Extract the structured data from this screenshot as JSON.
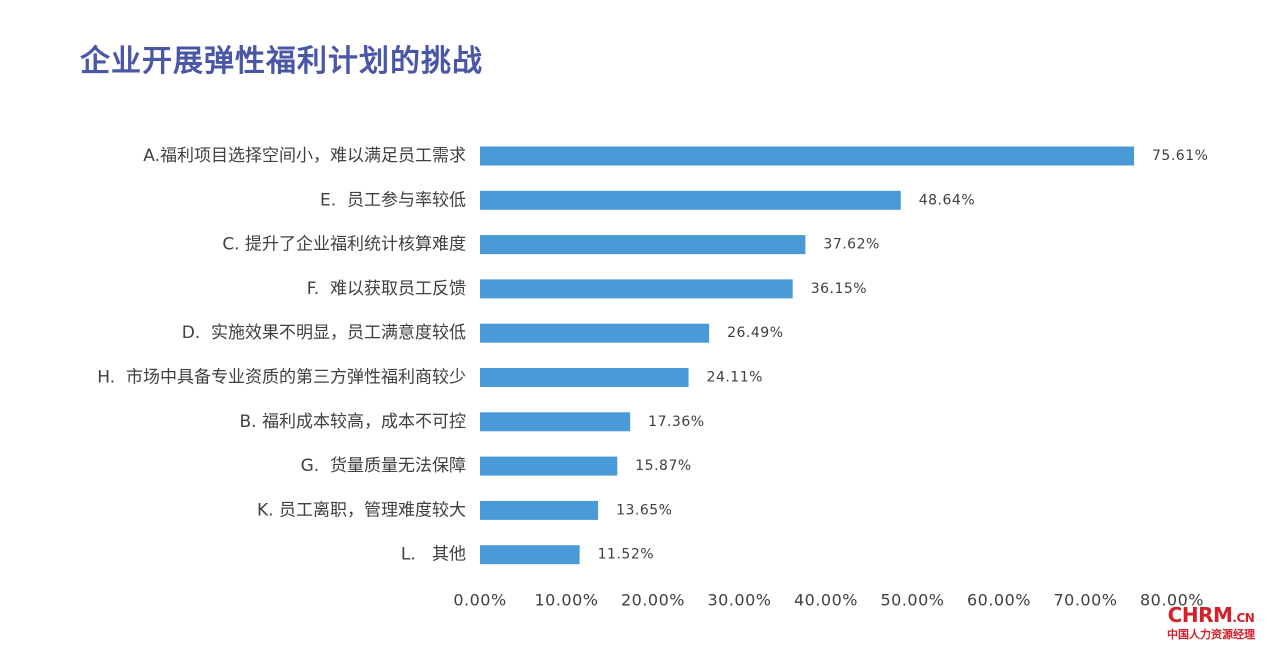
{
  "title": "企业开展弹性福利计划的挑战",
  "chart_data": {
    "type": "bar",
    "orientation": "horizontal",
    "categories": [
      "A.福利项目选择空间小，难以满足员工需求",
      "E.  员工参与率较低",
      "C. 提升了企业福利统计核算难度",
      "F.  难以获取员工反馈",
      "D.  实施效果不明显，员工满意度较低",
      "H.  市场中具备专业资质的第三方弹性福利商较少",
      "B. 福利成本较高，成本不可控",
      "G.  货量质量无法保障",
      "K. 员工离职，管理难度较大",
      "L.   其他"
    ],
    "values": [
      75.61,
      48.64,
      37.62,
      36.15,
      26.49,
      24.11,
      17.36,
      15.87,
      13.65,
      11.52
    ],
    "value_labels": [
      "75.61%",
      "48.64%",
      "37.62%",
      "36.15%",
      "26.49%",
      "24.11%",
      "17.36%",
      "15.87%",
      "13.65%",
      "11.52%"
    ],
    "xlim": [
      0,
      80
    ],
    "xticks": [
      0,
      10,
      20,
      30,
      40,
      50,
      60,
      70,
      80
    ],
    "xtick_labels": [
      "0.00%",
      "10.00%",
      "20.00%",
      "30.00%",
      "40.00%",
      "50.00%",
      "60.00%",
      "70.00%",
      "80.00%"
    ],
    "bar_color": "#4a9ad8",
    "grid": false,
    "legend": "none"
  },
  "logo": {
    "main": "CHRM",
    "suffix": ".CN",
    "sub": "中国人力资源经理",
    "color": "#d3202a"
  }
}
